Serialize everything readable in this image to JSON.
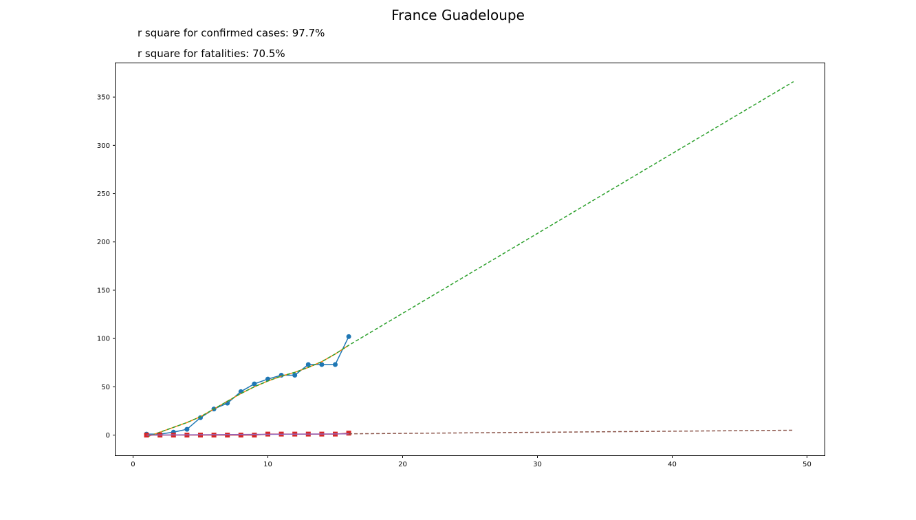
{
  "chart_data": {
    "type": "line",
    "title": "France Guadeloupe",
    "annotations": [
      "r square for confirmed cases: 97.7%",
      "r square for fatalities: 70.5%"
    ],
    "xlabel": "",
    "ylabel": "",
    "xlim": [
      -1.3,
      51.3
    ],
    "ylim": [
      -21,
      385
    ],
    "xticks": [
      0,
      10,
      20,
      30,
      40,
      50
    ],
    "yticks": [
      0,
      50,
      100,
      150,
      200,
      250,
      300,
      350
    ],
    "grid": false,
    "series": [
      {
        "kind": "confirmed-observed",
        "style": "line-marker-circle",
        "color": "#1f77b4",
        "x": [
          1,
          2,
          3,
          4,
          5,
          6,
          7,
          8,
          9,
          10,
          11,
          12,
          13,
          14,
          15,
          16
        ],
        "y": [
          1,
          1,
          3,
          6,
          18,
          27,
          33,
          45,
          53,
          58,
          62,
          62,
          73,
          73,
          73,
          102
        ]
      },
      {
        "kind": "confirmed-fit",
        "style": "line",
        "color": "#ff7f0e",
        "x": [
          1,
          2,
          3,
          4,
          5,
          6,
          7,
          8,
          9,
          10,
          11,
          12,
          13,
          14,
          15,
          16
        ],
        "y": [
          -2,
          3,
          8,
          13,
          19,
          27,
          35,
          43,
          50,
          56,
          61,
          65,
          70,
          76,
          84,
          93
        ]
      },
      {
        "kind": "confirmed-projection",
        "style": "dashed",
        "color": "#2ca02c",
        "x": [
          1,
          2,
          3,
          4,
          5,
          6,
          7,
          8,
          9,
          10,
          11,
          12,
          13,
          14,
          15,
          16,
          49
        ],
        "y": [
          -2,
          3,
          8,
          13,
          19,
          27,
          35,
          43,
          50,
          56,
          61,
          65,
          70,
          76,
          84,
          93,
          366
        ]
      },
      {
        "kind": "fatalities-observed",
        "style": "line-marker-square",
        "color": "#d62728",
        "x": [
          1,
          2,
          3,
          4,
          5,
          6,
          7,
          8,
          9,
          10,
          11,
          12,
          13,
          14,
          15,
          16
        ],
        "y": [
          0,
          0,
          0,
          0,
          0,
          0,
          0,
          0,
          0,
          1,
          1,
          1,
          1,
          1,
          1,
          2
        ]
      },
      {
        "kind": "fatalities-fit",
        "style": "line",
        "color": "#9467bd",
        "x": [
          1,
          16
        ],
        "y": [
          0,
          1.3
        ]
      },
      {
        "kind": "fatalities-projection",
        "style": "dashed",
        "color": "#8c564b",
        "x": [
          16,
          49
        ],
        "y": [
          1.3,
          5
        ]
      }
    ]
  }
}
